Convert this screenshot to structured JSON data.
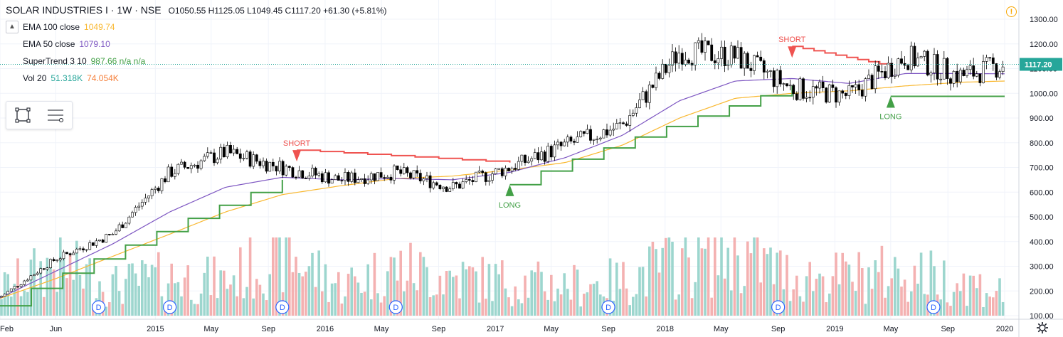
{
  "header": {
    "symbol": "SOLAR INDUSTRIES I · 1W · NSE",
    "ohlc": "O1050.55  H1125.05  L1049.45  C1117.20  +61.30 (+5.81%)"
  },
  "studies": [
    {
      "name": "EMA 100 close",
      "value": "1049.74",
      "color": "#f9b830"
    },
    {
      "name": "EMA 50 close",
      "value": "1079.10",
      "color": "#7e57c2"
    },
    {
      "name": "SuperTrend 3 10",
      "value": "987.66  n/a  n/a",
      "color": "#43a047"
    },
    {
      "name": "Vol 20",
      "value": "51.318K",
      "value2": "74.054K",
      "color": "#26a69a",
      "color2": "#f57f3a"
    }
  ],
  "price_axis": {
    "ticks": [
      "1300.00",
      "1200.00",
      "1100.00",
      "1000.00",
      "900.00",
      "800.00",
      "700.00",
      "600.00",
      "500.00",
      "400.00",
      "300.00",
      "200.00",
      "100.00"
    ]
  },
  "last_price_label": "1117.20",
  "time_axis": {
    "labels": [
      "Feb",
      "Jun",
      "2015",
      "May",
      "Sep",
      "2016",
      "May",
      "Sep",
      "2017",
      "May",
      "Sep",
      "2018",
      "May",
      "Sep",
      "2019",
      "May",
      "Sep",
      "2020"
    ]
  },
  "annotations": [
    {
      "text": "SHORT",
      "color": "#ef5350"
    },
    {
      "text": "LONG",
      "color": "#43a047"
    },
    {
      "text": "SHORT",
      "color": "#ef5350"
    },
    {
      "text": "LONG",
      "color": "#43a047"
    }
  ],
  "dividend_marker": "D",
  "icons": {
    "warning": "warning-icon",
    "settings": "gear-icon",
    "collapse": "chevron-up-icon",
    "tool1": "rectangle-select-icon",
    "tool2": "list-lines-icon"
  },
  "colors": {
    "up": "#26a69a",
    "down": "#ef5350",
    "vol_up": "#8ccfc5",
    "vol_down": "#f2a3a3",
    "ema100": "#f9b830",
    "ema50": "#7e57c2",
    "supertrend_up": "#43a047",
    "supertrend_down": "#ef5350"
  },
  "chart_data": {
    "type": "candlestick",
    "interval": "1W",
    "x_range": [
      "2014-02",
      "2020-01"
    ],
    "ylim": [
      100,
      1320
    ],
    "dates": [
      "2014-02",
      "2014-06",
      "2014-10",
      "2015-02",
      "2015-06",
      "2015-10",
      "2016-02",
      "2016-06",
      "2016-10",
      "2017-02",
      "2017-06",
      "2017-10",
      "2018-02",
      "2018-06",
      "2018-10",
      "2019-02",
      "2019-06",
      "2019-10",
      "2020-01"
    ],
    "close_approx": [
      175,
      330,
      430,
      680,
      760,
      700,
      650,
      680,
      620,
      700,
      790,
      870,
      1170,
      1150,
      1020,
      990,
      1150,
      1070,
      1117.2
    ],
    "volume_approx_k": [
      60,
      120,
      70,
      90,
      80,
      150,
      70,
      110,
      90,
      80,
      70,
      80,
      130,
      150,
      90,
      90,
      100,
      80,
      51.3
    ],
    "ema100_approx": [
      170,
      250,
      340,
      430,
      520,
      590,
      625,
      655,
      665,
      690,
      720,
      790,
      900,
      980,
      1000,
      1010,
      1030,
      1045,
      1049.74
    ],
    "ema50_approx": [
      172,
      280,
      390,
      520,
      620,
      660,
      650,
      655,
      650,
      680,
      740,
      830,
      970,
      1050,
      1060,
      1040,
      1080,
      1080,
      1079.1
    ],
    "supertrend_bands": [
      {
        "from": "2014-02",
        "to": "2015-10",
        "dir": "up",
        "level_start": 140,
        "level_end": 650
      },
      {
        "from": "2015-11",
        "to": "2017-02",
        "dir": "down",
        "level_start": 770,
        "level_end": 720
      },
      {
        "from": "2017-02",
        "to": "2018-10",
        "dir": "up",
        "level_start": 630,
        "level_end": 1030
      },
      {
        "from": "2018-10",
        "to": "2019-05",
        "dir": "down",
        "level_start": 1190,
        "level_end": 1110
      },
      {
        "from": "2019-05",
        "to": "2020-01",
        "dir": "up",
        "level_start": 987.66,
        "level_end": 987.66
      }
    ],
    "signals": [
      {
        "type": "SHORT",
        "date": "2015-11",
        "price": 770
      },
      {
        "type": "LONG",
        "date": "2017-02",
        "price": 630
      },
      {
        "type": "SHORT",
        "date": "2018-10",
        "price": 1190
      },
      {
        "type": "LONG",
        "date": "2019-05",
        "price": 987.66
      }
    ],
    "dividends": [
      "2014-09",
      "2015-02",
      "2015-10",
      "2016-06",
      "2017-09",
      "2018-09",
      "2019-08"
    ],
    "last_close": 1117.2
  }
}
